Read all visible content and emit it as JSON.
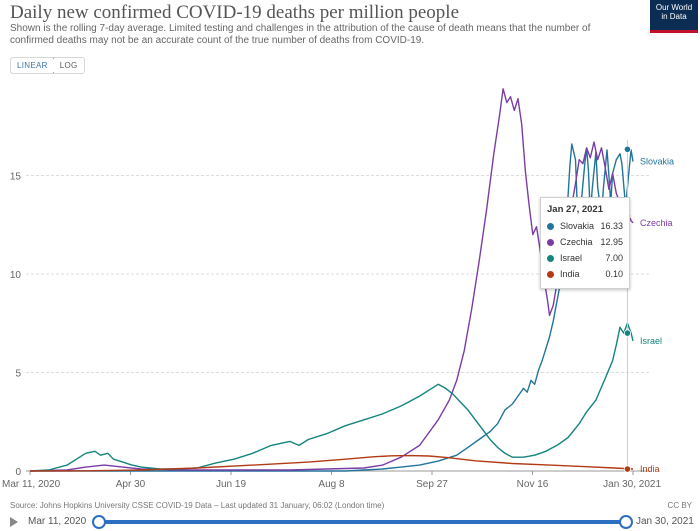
{
  "header": {
    "title": "Daily new confirmed COVID-19 deaths per million people",
    "subtitle": "Shown is the rolling 7-day average. Limited testing and challenges in the attribution of the cause of death means that the number of confirmed deaths may not be an accurate count of the true number of deaths from COVID-19.",
    "logo_line1": "Our World",
    "logo_line2": "in Data"
  },
  "scale_toggle": {
    "linear_label": "LINEAR",
    "log_label": "LOG",
    "active": "LINEAR"
  },
  "tooltip": {
    "date": "Jan 27, 2021",
    "rows": [
      {
        "name": "Slovakia",
        "value": "16.33",
        "color": "#21749a"
      },
      {
        "name": "Czechia",
        "value": "12.95",
        "color": "#7b3ca6"
      },
      {
        "name": "Israel",
        "value": "7.00",
        "color": "#14847d"
      },
      {
        "name": "India",
        "value": "0.10",
        "color": "#b23a16"
      }
    ]
  },
  "footer": {
    "source": "Source: Johns Hopkins University CSSE COVID-19 Data – Last updated 31 January, 06:02 (London time)",
    "license": "CC BY"
  },
  "timeline": {
    "start_label": "Mar 11, 2020",
    "end_label": "Jan 30, 2021"
  },
  "chart_data": {
    "type": "line",
    "title": "Daily new confirmed COVID-19 deaths per million people",
    "ylim": [
      0,
      19.5
    ],
    "y_ticks": [
      0,
      5,
      10,
      15
    ],
    "x_ticks": [
      "Mar 11, 2020",
      "Apr 30",
      "Jun 19",
      "Aug 8",
      "Sep 27",
      "Nov 16",
      "Jan 30, 2021"
    ],
    "x_days_range": [
      0,
      325
    ],
    "grid": true,
    "legend": "end-of-line labels",
    "series": [
      {
        "name": "Slovakia",
        "color": "#21749a",
        "points": [
          [
            0,
            0
          ],
          [
            40,
            0
          ],
          [
            80,
            0
          ],
          [
            120,
            0
          ],
          [
            150,
            0
          ],
          [
            170,
            0
          ],
          [
            180,
            0.05
          ],
          [
            190,
            0.1
          ],
          [
            200,
            0.2
          ],
          [
            210,
            0.3
          ],
          [
            220,
            0.5
          ],
          [
            230,
            0.8
          ],
          [
            236,
            1.2
          ],
          [
            242,
            1.6
          ],
          [
            248,
            2.0
          ],
          [
            252,
            2.4
          ],
          [
            256,
            3.1
          ],
          [
            260,
            3.4
          ],
          [
            263,
            3.8
          ],
          [
            266,
            4.2
          ],
          [
            268,
            4.0
          ],
          [
            270,
            4.6
          ],
          [
            272,
            4.4
          ],
          [
            274,
            5.1
          ],
          [
            276,
            5.6
          ],
          [
            278,
            6.2
          ],
          [
            280,
            6.8
          ],
          [
            282,
            7.6
          ],
          [
            284,
            8.6
          ],
          [
            286,
            9.6
          ],
          [
            287,
            11.0
          ],
          [
            289,
            12.5
          ],
          [
            290,
            14.0
          ],
          [
            291,
            15.5
          ],
          [
            292,
            16.6
          ],
          [
            294,
            15.8
          ],
          [
            295,
            13.4
          ],
          [
            296,
            11.8
          ],
          [
            297,
            13.5
          ],
          [
            299,
            15.6
          ],
          [
            300,
            16.4
          ],
          [
            301,
            15.2
          ],
          [
            302,
            13.0
          ],
          [
            303,
            14.3
          ],
          [
            305,
            16.2
          ],
          [
            306,
            14.4
          ],
          [
            308,
            12.9
          ],
          [
            309,
            14.3
          ],
          [
            311,
            16.3
          ],
          [
            312,
            15.0
          ],
          [
            313,
            13.6
          ],
          [
            314,
            15.1
          ],
          [
            316,
            15.8
          ],
          [
            318,
            16.1
          ],
          [
            319,
            15.6
          ],
          [
            321,
            13.4
          ],
          [
            323,
            15.4
          ],
          [
            324,
            16.3
          ],
          [
            325,
            15.7
          ]
        ]
      },
      {
        "name": "Czechia",
        "color": "#7b3ca6",
        "points": [
          [
            0,
            0
          ],
          [
            20,
            0.05
          ],
          [
            30,
            0.2
          ],
          [
            40,
            0.3
          ],
          [
            50,
            0.2
          ],
          [
            60,
            0.1
          ],
          [
            80,
            0.05
          ],
          [
            100,
            0.05
          ],
          [
            120,
            0.05
          ],
          [
            140,
            0.05
          ],
          [
            160,
            0.1
          ],
          [
            180,
            0.15
          ],
          [
            190,
            0.3
          ],
          [
            200,
            0.7
          ],
          [
            210,
            1.3
          ],
          [
            220,
            2.6
          ],
          [
            226,
            3.6
          ],
          [
            230,
            4.6
          ],
          [
            234,
            6.1
          ],
          [
            238,
            8.2
          ],
          [
            242,
            10.6
          ],
          [
            246,
            13.2
          ],
          [
            250,
            16.1
          ],
          [
            253,
            18.0
          ],
          [
            255,
            19.4
          ],
          [
            257,
            18.7
          ],
          [
            259,
            19.0
          ],
          [
            261,
            18.3
          ],
          [
            263,
            18.9
          ],
          [
            265,
            17.6
          ],
          [
            267,
            15.2
          ],
          [
            269,
            13.5
          ],
          [
            271,
            12.0
          ],
          [
            273,
            12.4
          ],
          [
            275,
            11.2
          ],
          [
            277,
            9.8
          ],
          [
            279,
            8.6
          ],
          [
            280,
            7.9
          ],
          [
            282,
            8.4
          ],
          [
            284,
            9.5
          ],
          [
            286,
            10.8
          ],
          [
            288,
            12.1
          ],
          [
            290,
            13.0
          ],
          [
            292,
            13.5
          ],
          [
            294,
            14.6
          ],
          [
            296,
            15.8
          ],
          [
            298,
            15.6
          ],
          [
            300,
            16.4
          ],
          [
            302,
            15.9
          ],
          [
            304,
            16.7
          ],
          [
            306,
            15.8
          ],
          [
            308,
            16.4
          ],
          [
            310,
            15.4
          ],
          [
            312,
            14.3
          ],
          [
            314,
            15.1
          ],
          [
            316,
            14.1
          ],
          [
            318,
            13.6
          ],
          [
            320,
            12.9
          ],
          [
            322,
            13.2
          ],
          [
            324,
            12.7
          ],
          [
            325,
            12.6
          ]
        ]
      },
      {
        "name": "Israel",
        "color": "#14847d",
        "points": [
          [
            0,
            0
          ],
          [
            10,
            0.05
          ],
          [
            20,
            0.3
          ],
          [
            25,
            0.6
          ],
          [
            30,
            0.9
          ],
          [
            35,
            1.0
          ],
          [
            38,
            0.8
          ],
          [
            42,
            0.9
          ],
          [
            45,
            0.6
          ],
          [
            50,
            0.45
          ],
          [
            55,
            0.3
          ],
          [
            60,
            0.2
          ],
          [
            70,
            0.1
          ],
          [
            80,
            0.1
          ],
          [
            90,
            0.15
          ],
          [
            100,
            0.4
          ],
          [
            110,
            0.6
          ],
          [
            120,
            0.9
          ],
          [
            130,
            1.3
          ],
          [
            140,
            1.5
          ],
          [
            145,
            1.3
          ],
          [
            150,
            1.6
          ],
          [
            160,
            1.9
          ],
          [
            170,
            2.3
          ],
          [
            180,
            2.6
          ],
          [
            190,
            2.9
          ],
          [
            200,
            3.3
          ],
          [
            210,
            3.8
          ],
          [
            215,
            4.1
          ],
          [
            220,
            4.4
          ],
          [
            224,
            4.2
          ],
          [
            228,
            3.9
          ],
          [
            232,
            3.5
          ],
          [
            236,
            3.1
          ],
          [
            240,
            2.6
          ],
          [
            244,
            2.1
          ],
          [
            248,
            1.6
          ],
          [
            252,
            1.2
          ],
          [
            256,
            0.9
          ],
          [
            260,
            0.7
          ],
          [
            266,
            0.7
          ],
          [
            272,
            0.8
          ],
          [
            278,
            1.0
          ],
          [
            284,
            1.3
          ],
          [
            290,
            1.7
          ],
          [
            296,
            2.4
          ],
          [
            300,
            3.0
          ],
          [
            305,
            3.6
          ],
          [
            310,
            4.7
          ],
          [
            314,
            5.6
          ],
          [
            316,
            6.4
          ],
          [
            318,
            7.3
          ],
          [
            320,
            7.0
          ],
          [
            322,
            7.5
          ],
          [
            324,
            7.0
          ],
          [
            325,
            6.6
          ]
        ]
      },
      {
        "name": "India",
        "color": "#b23a16",
        "points": [
          [
            0,
            0
          ],
          [
            30,
            0.01
          ],
          [
            60,
            0.05
          ],
          [
            90,
            0.15
          ],
          [
            120,
            0.3
          ],
          [
            150,
            0.45
          ],
          [
            170,
            0.6
          ],
          [
            185,
            0.72
          ],
          [
            195,
            0.77
          ],
          [
            205,
            0.78
          ],
          [
            215,
            0.76
          ],
          [
            225,
            0.68
          ],
          [
            240,
            0.52
          ],
          [
            260,
            0.38
          ],
          [
            280,
            0.3
          ],
          [
            300,
            0.22
          ],
          [
            315,
            0.15
          ],
          [
            325,
            0.1
          ]
        ]
      }
    ]
  }
}
